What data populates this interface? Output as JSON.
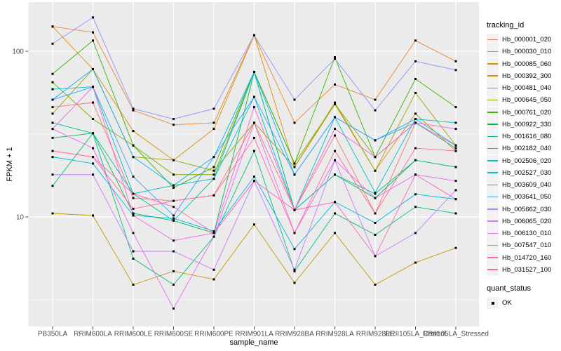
{
  "panel": {
    "background": "#EBEBEB",
    "grid_color": "#FFFFFF",
    "axis_text_color": "#4D4D4D",
    "tick_color": "#333333",
    "figure_background": "#FFFFFF"
  },
  "chart_data": {
    "type": "line",
    "xlabel": "sample_name",
    "ylabel": "FPKM + 1",
    "y_scale": "log10",
    "y_ticks": [
      10,
      100
    ],
    "y_minor_ticks": [
      3.162,
      31.62
    ],
    "ylim": [
      2.2,
      198
    ],
    "grid": true,
    "legend_position": "right",
    "point_shape": "filled-square",
    "point_color": "#000000",
    "categories": [
      "PB350LA",
      "RRIM600LA",
      "RRIM600LE",
      "RRIM600SE",
      "RRIM600PE",
      "RRIM901LA",
      "RRIM928BA",
      "RRIM928LA",
      "RRIM928LE",
      "RRII105LA_Control",
      "RRII105LA_Stressed"
    ],
    "series": [
      {
        "name": "Hb_000001_020",
        "color": "#F8766D",
        "values": [
          46,
          49,
          13,
          12.5,
          13.5,
          37,
          11,
          31,
          10.5,
          37,
          27
        ]
      },
      {
        "name": "Hb_000030_010",
        "color": "#EA8331",
        "values": [
          141,
          130,
          44,
          36,
          37,
          125,
          37,
          63,
          51,
          116,
          87
        ]
      },
      {
        "name": "Hb_000085_060",
        "color": "#D89000",
        "values": [
          141,
          78,
          33,
          22,
          34,
          125,
          20,
          49,
          19,
          42,
          25
        ]
      },
      {
        "name": "Hb_000392_300",
        "color": "#C09B00",
        "values": [
          10.5,
          10.2,
          3.9,
          4.7,
          4.2,
          9,
          4,
          8,
          3.9,
          5.3,
          6.5
        ]
      },
      {
        "name": "Hb_000481_040",
        "color": "#A3A500",
        "values": [
          42,
          78,
          23,
          22,
          19,
          37,
          20,
          48,
          19,
          56,
          27
        ]
      },
      {
        "name": "Hb_000645_050",
        "color": "#7CAE00",
        "values": [
          65,
          39,
          27,
          18,
          18,
          75,
          21,
          48,
          23,
          37,
          26
        ]
      },
      {
        "name": "Hb_000761_020",
        "color": "#39B600",
        "values": [
          73,
          116,
          27,
          15,
          20,
          75,
          21,
          92,
          23,
          68,
          46
        ]
      },
      {
        "name": "Hb_000922_330",
        "color": "#00BB4E",
        "values": [
          30,
          32,
          10.5,
          9.5,
          8,
          75,
          11,
          18,
          13,
          22,
          20
        ]
      },
      {
        "name": "Hb_001616_080",
        "color": "#00BF7D",
        "values": [
          15.4,
          32,
          5.6,
          3.9,
          7.6,
          25,
          4.7,
          10.5,
          7.8,
          11.5,
          10.5
        ]
      },
      {
        "name": "Hb_002182_040",
        "color": "#00C1A3",
        "values": [
          37,
          32,
          13.8,
          9.5,
          17,
          75,
          11,
          18,
          13.8,
          22,
          20
        ]
      },
      {
        "name": "Hb_002506_020",
        "color": "#00BFC4",
        "values": [
          59,
          61,
          13.8,
          15.5,
          17,
          53,
          11,
          40,
          14,
          39,
          37
        ]
      },
      {
        "name": "Hb_002527_030",
        "color": "#00BAE0",
        "values": [
          23,
          21,
          10.2,
          9.8,
          8.2,
          17.5,
          6.4,
          12.3,
          9.2,
          13.7,
          12.8
        ]
      },
      {
        "name": "Hb_003609_040",
        "color": "#00B0F6",
        "values": [
          51,
          78,
          23,
          15.5,
          23,
          75,
          18,
          40,
          29,
          39,
          27
        ]
      },
      {
        "name": "Hb_003641_050",
        "color": "#35A2FF",
        "values": [
          51,
          61,
          17.5,
          10.2,
          23,
          53,
          18,
          40,
          29,
          37,
          26
        ]
      },
      {
        "name": "Hb_005662_030",
        "color": "#9590FF",
        "values": [
          111,
          160,
          45,
          39,
          45,
          125,
          51,
          90,
          44,
          87,
          77
        ]
      },
      {
        "name": "Hb_006065_020",
        "color": "#C77CFF",
        "values": [
          18,
          18,
          6.2,
          6.2,
          4.8,
          16.5,
          4.8,
          22,
          5.8,
          8,
          14.5
        ]
      },
      {
        "name": "Hb_006130_010",
        "color": "#E76BF3",
        "values": [
          34,
          26,
          8,
          2.8,
          7.6,
          37,
          8,
          22,
          13,
          18,
          16.5
        ]
      },
      {
        "name": "Hb_007547_010",
        "color": "#FA62DB",
        "values": [
          34,
          61,
          10.2,
          7.2,
          8,
          46,
          11,
          34,
          23,
          37,
          34
        ]
      },
      {
        "name": "Hb_014720_160",
        "color": "#FF62BC",
        "values": [
          25,
          23,
          13.8,
          11.5,
          8,
          16.5,
          11,
          12.3,
          5.8,
          18,
          12.8
        ]
      },
      {
        "name": "Hb_031527_100",
        "color": "#FF6A98",
        "values": [
          25,
          23,
          11.2,
          12.5,
          13.5,
          30,
          8,
          25,
          10.5,
          26,
          25
        ]
      }
    ]
  },
  "legend": {
    "tracking_title": "tracking_id",
    "quant_title": "quant_status",
    "quant_items": [
      {
        "label": "OK",
        "shape": "filled-square",
        "color": "#000000"
      }
    ]
  }
}
